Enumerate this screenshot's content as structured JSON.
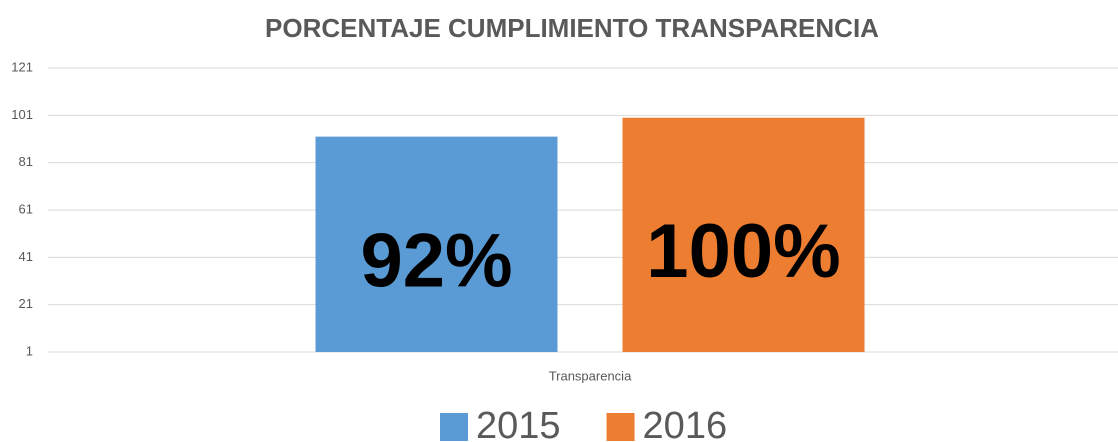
{
  "chart_data": {
    "type": "bar",
    "title": "PORCENTAJE CUMPLIMIENTO TRANSPARENCIA",
    "categories": [
      "Transparencia"
    ],
    "series": [
      {
        "name": "2015",
        "color": "#5b9bd5",
        "values": [
          92
        ],
        "value_labels": [
          "92%"
        ]
      },
      {
        "name": "2016",
        "color": "#ed7d31",
        "values": [
          100
        ],
        "value_labels": [
          "100%"
        ]
      }
    ],
    "ylim": [
      1,
      121
    ],
    "yticks": [
      1,
      21,
      41,
      61,
      81,
      101,
      121
    ],
    "grid": true,
    "legend": "bottom"
  }
}
